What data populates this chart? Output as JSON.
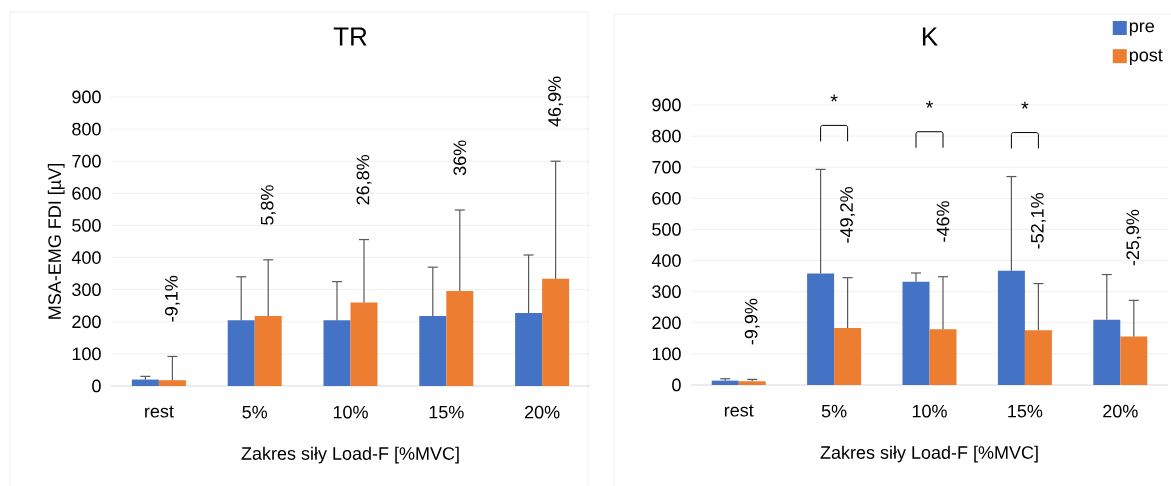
{
  "chart_data": [
    {
      "type": "bar",
      "title": "TR",
      "xlabel": "Zakres siły Load-F [%MVC]",
      "ylabel": "MSA-EMG FDI [µV]",
      "categories": [
        "rest",
        "5%",
        "10%",
        "15%",
        "20%"
      ],
      "series": [
        {
          "color": "#4472c4",
          "values": [
            20,
            205,
            205,
            218,
            227
          ],
          "errors": [
            [
              20,
              30
            ],
            [
              205,
              340
            ],
            [
              205,
              325
            ],
            [
              218,
              370
            ],
            [
              227,
              408
            ]
          ]
        },
        {
          "color": "#ed7d31",
          "values": [
            18,
            218,
            260,
            296,
            334
          ],
          "errors": [
            [
              18,
              92
            ],
            [
              218,
              393
            ],
            [
              260,
              456
            ],
            [
              296,
              548
            ],
            [
              334,
              700
            ]
          ]
        }
      ],
      "ylim": [
        0,
        900
      ],
      "yticks": [
        0,
        100,
        200,
        300,
        400,
        500,
        600,
        700,
        800,
        900
      ],
      "grid": "y",
      "annotations": [
        "-9,1%",
        "5,8%",
        "26,8%",
        "36%",
        "46,9%"
      ]
    },
    {
      "type": "bar",
      "title": "K",
      "xlabel": "Zakres siły Load-F [%MVC]",
      "categories": [
        "rest",
        "5%",
        "10%",
        "15%",
        "20%"
      ],
      "series": [
        {
          "name": "pre",
          "color": "#4472c4",
          "values": [
            14,
            358,
            332,
            367,
            210
          ],
          "errors": [
            [
              14,
              20
            ],
            [
              358,
              693
            ],
            [
              332,
              360
            ],
            [
              367,
              670
            ],
            [
              210,
              355
            ]
          ]
        },
        {
          "name": "post",
          "color": "#ed7d31",
          "values": [
            12,
            183,
            179,
            176,
            156
          ],
          "errors": [
            [
              12,
              18
            ],
            [
              183,
              345
            ],
            [
              179,
              348
            ],
            [
              176,
              326
            ],
            [
              156,
              272
            ]
          ]
        }
      ],
      "ylim": [
        0,
        900
      ],
      "yticks": [
        0,
        100,
        200,
        300,
        400,
        500,
        600,
        700,
        800,
        900
      ],
      "grid": "y",
      "legend": "top right",
      "annotations": [
        "-9,9%",
        "-49,2%",
        "-46%",
        "-52,1%",
        "-25,9%",
        "*",
        "*",
        "*"
      ]
    }
  ]
}
